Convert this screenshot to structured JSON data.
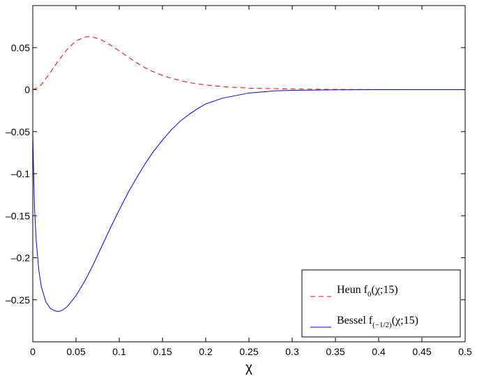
{
  "chart_data": {
    "type": "line",
    "title": "",
    "xlabel": "χ",
    "ylabel": "",
    "xlim": [
      0,
      0.5
    ],
    "ylim": [
      -0.3,
      0.1
    ],
    "grid": false,
    "legend_position": "bottom-right",
    "xticks": [
      0,
      0.05,
      0.1,
      0.15,
      0.2,
      0.25,
      0.3,
      0.35,
      0.4,
      0.45,
      0.5
    ],
    "xtick_labels": [
      "0",
      "0.05",
      "0.1",
      "0.15",
      "0.2",
      "0.25",
      "0.3",
      "0.35",
      "0.4",
      "0.45",
      "0.5"
    ],
    "yticks": [
      0.05,
      0,
      -0.05,
      -0.1,
      -0.15,
      -0.2,
      -0.25
    ],
    "ytick_labels": [
      "0.05",
      "0",
      "–0.05",
      "–0.1",
      "–0.15",
      "–0.2",
      "–0.25"
    ],
    "series": [
      {
        "legend": {
          "prefix": "Heun f",
          "sub": "0",
          "suffix": "(χ;15)"
        },
        "color": "#ff0000",
        "dash": "dashed",
        "x": [
          0,
          0.005,
          0.01,
          0.02,
          0.03,
          0.04,
          0.05,
          0.06,
          0.065,
          0.07,
          0.08,
          0.09,
          0.1,
          0.11,
          0.12,
          0.13,
          0.14,
          0.15,
          0.16,
          0.18,
          0.2,
          0.22,
          0.25,
          0.3,
          0.35,
          0.4,
          0.45,
          0.5
        ],
        "y": [
          0,
          0.002,
          0.006,
          0.02,
          0.035,
          0.048,
          0.058,
          0.0625,
          0.063,
          0.0625,
          0.059,
          0.053,
          0.046,
          0.039,
          0.032,
          0.026,
          0.021,
          0.017,
          0.0135,
          0.0085,
          0.0055,
          0.0035,
          0.0018,
          0.0007,
          0.0003,
          0.0001,
          0,
          0
        ]
      },
      {
        "legend": {
          "prefix": "Bessel f",
          "sub": "(−1/2)",
          "suffix": "(χ;15)"
        },
        "color": "#0000ff",
        "dash": "solid",
        "x": [
          0,
          0.001,
          0.002,
          0.004,
          0.007,
          0.01,
          0.015,
          0.02,
          0.025,
          0.03,
          0.035,
          0.04,
          0.05,
          0.06,
          0.07,
          0.08,
          0.09,
          0.1,
          0.11,
          0.12,
          0.13,
          0.14,
          0.15,
          0.16,
          0.17,
          0.18,
          0.19,
          0.2,
          0.22,
          0.25,
          0.28,
          0.3,
          0.35,
          0.4,
          0.45,
          0.5
        ],
        "y": [
          -0.05,
          -0.1,
          -0.14,
          -0.18,
          -0.215,
          -0.235,
          -0.252,
          -0.26,
          -0.263,
          -0.264,
          -0.262,
          -0.258,
          -0.245,
          -0.228,
          -0.208,
          -0.186,
          -0.164,
          -0.143,
          -0.123,
          -0.105,
          -0.088,
          -0.073,
          -0.06,
          -0.048,
          -0.038,
          -0.03,
          -0.023,
          -0.017,
          -0.01,
          -0.004,
          -0.0015,
          -0.0008,
          -0.0002,
          -5e-05,
          0,
          0
        ]
      }
    ]
  }
}
